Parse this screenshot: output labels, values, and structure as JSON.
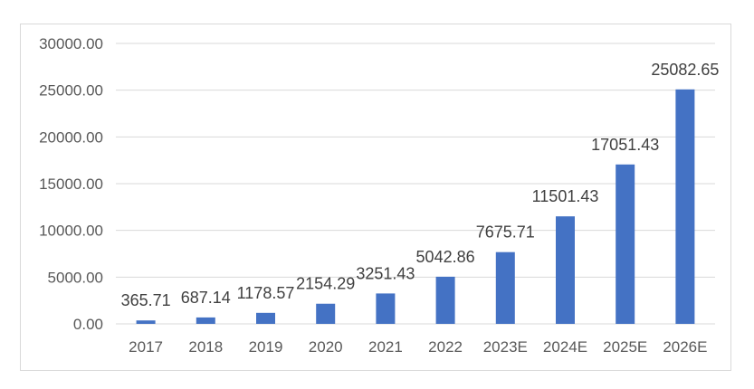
{
  "chart_data": {
    "type": "bar",
    "title": "",
    "xlabel": "",
    "ylabel": "",
    "categories": [
      "2017",
      "2018",
      "2019",
      "2020",
      "2021",
      "2022",
      "2023E",
      "2024E",
      "2025E",
      "2026E"
    ],
    "series": [
      {
        "values": [
          365.71,
          687.14,
          1178.57,
          2154.29,
          3251.43,
          5042.86,
          7675.71,
          11501.43,
          17051.43,
          25082.65
        ],
        "color": "#4472c4"
      }
    ],
    "data_labels": [
      "365.71",
      "687.14",
      "1178.57",
      "2154.29",
      "3251.43",
      "5042.86",
      "7675.71",
      "11501.43",
      "17051.43",
      "25082.65"
    ],
    "y_ticks": [
      "0.00",
      "5000.00",
      "10000.00",
      "15000.00",
      "20000.00",
      "25000.00",
      "30000.00"
    ],
    "ylim": [
      0,
      30000
    ],
    "grid": true,
    "legend": "none"
  }
}
